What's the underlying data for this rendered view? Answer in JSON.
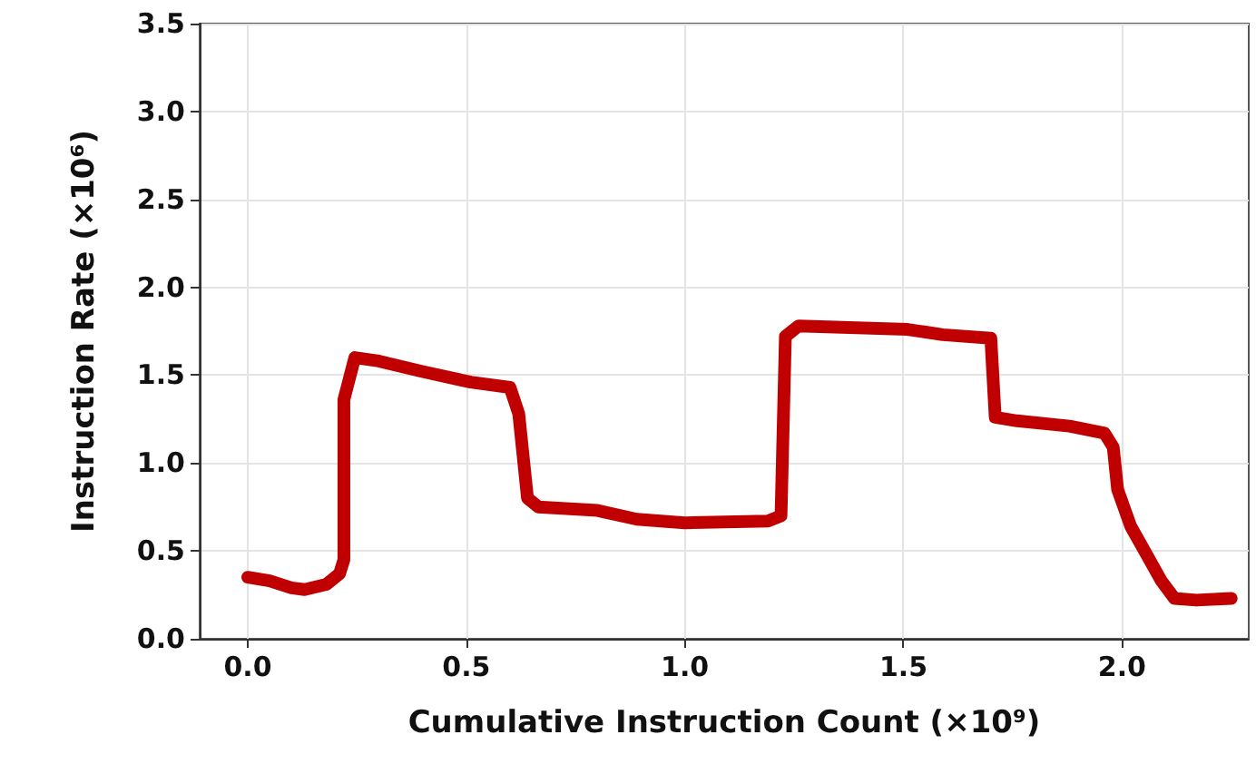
{
  "chart_data": {
    "type": "line",
    "xlabel": "Cumulative Instruction Count (×10⁹)",
    "ylabel": "Instruction Rate (×10⁶)",
    "xlim": [
      -0.11,
      2.29
    ],
    "xticks": [
      {
        "value": 0,
        "label": "0.0"
      },
      {
        "value": 0.5,
        "label": "0.5"
      },
      {
        "value": 1,
        "label": "1.0"
      },
      {
        "value": 1.5,
        "label": "1.5"
      },
      {
        "value": 2,
        "label": "2.0"
      }
    ],
    "ylim": [
      0,
      3.5
    ],
    "yticks": [
      {
        "value": 0,
        "label": "0.0"
      },
      {
        "value": 0.5,
        "label": "0.5"
      },
      {
        "value": 1,
        "label": "1.0"
      },
      {
        "value": 1.5,
        "label": "1.5"
      },
      {
        "value": 2,
        "label": "2.0"
      },
      {
        "value": 2.5,
        "label": "2.5"
      },
      {
        "value": 3,
        "label": "3.0"
      },
      {
        "value": 3.5,
        "label": "3.5"
      }
    ],
    "grid": true,
    "line_style": "solid",
    "series": [
      {
        "color": "#c00000",
        "x": [
          0,
          0.05,
          0.1,
          0.13,
          0.18,
          0.21,
          0.22,
          0.22,
          0.22,
          0.245,
          0.3,
          0.4,
          0.51,
          0.6,
          0.62,
          0.64,
          0.665,
          0.8,
          0.89,
          1.0,
          1.19,
          1.22,
          1.23,
          1.26,
          1.51,
          1.59,
          1.7,
          1.71,
          1.76,
          1.88,
          1.96,
          1.98,
          1.99,
          2.02,
          2.09,
          2.12,
          2.17,
          2.25
        ],
        "values": [
          0.35,
          0.33,
          0.29,
          0.28,
          0.31,
          0.37,
          0.45,
          0.95,
          1.36,
          1.6,
          1.58,
          1.52,
          1.46,
          1.43,
          1.28,
          0.8,
          0.75,
          0.73,
          0.68,
          0.66,
          0.67,
          0.7,
          1.72,
          1.78,
          1.76,
          1.73,
          1.71,
          1.26,
          1.24,
          1.21,
          1.17,
          1.09,
          0.85,
          0.64,
          0.33,
          0.23,
          0.22,
          0.23
        ]
      }
    ]
  }
}
